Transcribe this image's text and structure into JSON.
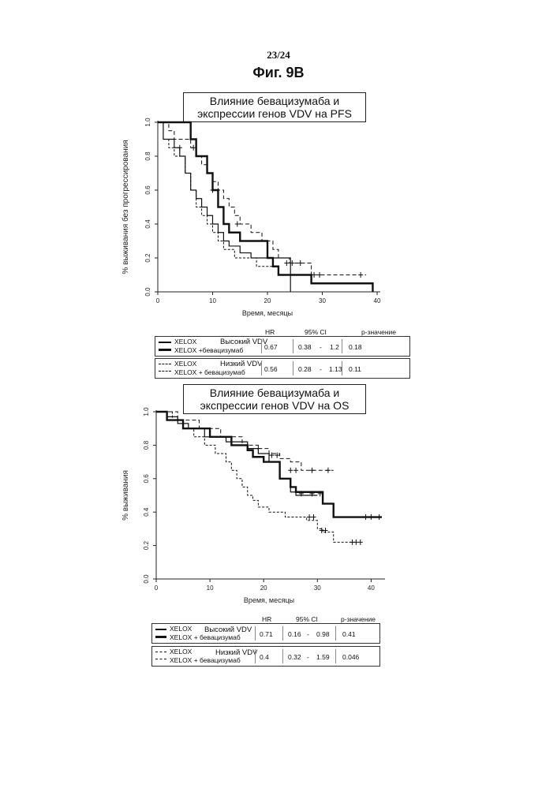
{
  "page": {
    "number": "23/24",
    "figure": "Фиг. 9B"
  },
  "chart_data": [
    {
      "type": "line",
      "title": "Влияние бевацизумаба и экспрессии генов VDV на PFS",
      "xlabel": "Время, месяцы",
      "ylabel": "% выживания без прогрессирования",
      "xlim": [
        0,
        40
      ],
      "ylim": [
        0,
        1.0
      ],
      "xticks": [
        "0",
        "10",
        "20",
        "30",
        "40"
      ],
      "yticks": [
        "0.0",
        "0.2",
        "0.4",
        "0.6",
        "0.8",
        "1.0"
      ],
      "series": [
        {
          "name": "XELOX (Высокий VDV)",
          "style": "thin-solid",
          "x": [
            0,
            1,
            3,
            4,
            5,
            6,
            7,
            8,
            9,
            10,
            11,
            12,
            13,
            15,
            17,
            20,
            24,
            24.2
          ],
          "y": [
            1.0,
            0.9,
            0.85,
            0.8,
            0.7,
            0.6,
            0.55,
            0.5,
            0.45,
            0.4,
            0.35,
            0.3,
            0.27,
            0.23,
            0.2,
            0.2,
            0.2,
            0.0
          ]
        },
        {
          "name": "XELOX + бевацизумаб (Высокий VDV)",
          "style": "thick-solid",
          "x": [
            0,
            5,
            6,
            7,
            8,
            9,
            10,
            11,
            12,
            13,
            15,
            19,
            20,
            21,
            22,
            28,
            39,
            39.2
          ],
          "y": [
            1.0,
            1.0,
            0.9,
            0.8,
            0.8,
            0.7,
            0.6,
            0.5,
            0.4,
            0.35,
            0.3,
            0.3,
            0.2,
            0.15,
            0.1,
            0.05,
            0.05,
            0.0
          ]
        },
        {
          "name": "XELOX (Низкий VDV)",
          "style": "thin-dashed",
          "x": [
            0,
            1,
            2,
            3,
            5,
            6,
            7,
            8,
            9,
            10,
            11,
            12,
            14,
            16,
            18,
            20,
            22
          ],
          "y": [
            1.0,
            0.9,
            0.85,
            0.8,
            0.7,
            0.6,
            0.5,
            0.45,
            0.4,
            0.35,
            0.3,
            0.25,
            0.2,
            0.2,
            0.15,
            0.15,
            0.15
          ]
        },
        {
          "name": "XELOX + бевацизумаб (Низкий VDV)",
          "style": "thick-dashed",
          "x": [
            0,
            2,
            3,
            6,
            7,
            8,
            9,
            10,
            11,
            12,
            13,
            14,
            15,
            17,
            19,
            21,
            22,
            24,
            26,
            28,
            38
          ],
          "y": [
            1.0,
            0.95,
            0.9,
            0.85,
            0.8,
            0.75,
            0.7,
            0.65,
            0.6,
            0.55,
            0.5,
            0.45,
            0.4,
            0.35,
            0.3,
            0.25,
            0.2,
            0.17,
            0.17,
            0.1,
            0.1
          ]
        }
      ],
      "censor_marks": [
        {
          "x": 4,
          "y": 0.85
        },
        {
          "x": 6.5,
          "y": 0.85
        },
        {
          "x": 10,
          "y": 0.6
        },
        {
          "x": 14.5,
          "y": 0.4
        },
        {
          "x": 23.5,
          "y": 0.17
        },
        {
          "x": 24.5,
          "y": 0.17
        },
        {
          "x": 26,
          "y": 0.17
        },
        {
          "x": 28.5,
          "y": 0.1
        },
        {
          "x": 29.5,
          "y": 0.1
        },
        {
          "x": 37,
          "y": 0.1
        }
      ],
      "table": {
        "headers": {
          "hr": "HR",
          "ci": "95% CI",
          "p": "р-значение"
        },
        "groups": [
          {
            "label": "Высокий VDV",
            "arm1": "XELOX",
            "arm2": "XELOX +бевацизумаб",
            "hr": "0.67",
            "ci_low": "0.38",
            "ci_high": "1.2",
            "p": "0.18"
          },
          {
            "label": "Низкий VDV",
            "arm1": "XELOX",
            "arm2": "XELOX + бевацизумаб",
            "hr": "0.56",
            "ci_low": "0.28",
            "ci_high": "1.13",
            "p": "0.11"
          }
        ]
      }
    },
    {
      "type": "line",
      "title": "Влияние бевацизумаба и экспрессии генов VDV на OS",
      "xlabel": "Время, месяцы",
      "ylabel": "% выживания",
      "xlim": [
        0,
        42
      ],
      "ylim": [
        0,
        1.0
      ],
      "xticks": [
        "0",
        "10",
        "20",
        "30",
        "40"
      ],
      "yticks": [
        "0.0",
        "0.2",
        "0.4",
        "0.6",
        "0.8",
        "1.0"
      ],
      "series": [
        {
          "name": "XELOX (Высокий VDV)",
          "style": "thin-solid",
          "x": [
            0,
            2,
            4,
            6,
            9,
            13,
            17,
            19,
            21,
            23,
            25,
            26,
            28,
            30
          ],
          "y": [
            1.0,
            0.97,
            0.93,
            0.9,
            0.85,
            0.82,
            0.78,
            0.75,
            0.7,
            0.6,
            0.52,
            0.5,
            0.5,
            0.5
          ]
        },
        {
          "name": "XELOX + бевацизумаб (Высокий VDV)",
          "style": "thick-solid",
          "x": [
            0,
            2,
            5,
            8,
            10,
            14,
            17,
            18,
            20,
            22,
            23,
            25,
            26,
            31,
            33,
            42
          ],
          "y": [
            1.0,
            0.95,
            0.9,
            0.9,
            0.85,
            0.8,
            0.77,
            0.73,
            0.7,
            0.7,
            0.6,
            0.55,
            0.52,
            0.45,
            0.37,
            0.37
          ]
        },
        {
          "name": "XELOX (Низкий VDV)",
          "style": "thin-dashed",
          "x": [
            0,
            3,
            5,
            7,
            9,
            11,
            13,
            14,
            15,
            16,
            17,
            18,
            19,
            21,
            24,
            28,
            30,
            31,
            33,
            35,
            37
          ],
          "y": [
            1.0,
            0.95,
            0.9,
            0.85,
            0.8,
            0.75,
            0.7,
            0.65,
            0.6,
            0.55,
            0.5,
            0.47,
            0.43,
            0.4,
            0.37,
            0.35,
            0.3,
            0.28,
            0.22,
            0.22,
            0.22
          ]
        },
        {
          "name": "XELOX + бевацизумаб (Низкий VDV)",
          "style": "thick-dashed",
          "x": [
            0,
            4,
            8,
            12,
            16,
            19,
            21,
            23,
            25,
            27,
            33
          ],
          "y": [
            1.0,
            0.95,
            0.9,
            0.85,
            0.8,
            0.78,
            0.75,
            0.72,
            0.7,
            0.65,
            0.65
          ]
        }
      ],
      "censor_marks": [
        {
          "x": 19,
          "y": 0.78
        },
        {
          "x": 21.5,
          "y": 0.74
        },
        {
          "x": 22.5,
          "y": 0.74
        },
        {
          "x": 25,
          "y": 0.65
        },
        {
          "x": 26,
          "y": 0.65
        },
        {
          "x": 29,
          "y": 0.65
        },
        {
          "x": 32,
          "y": 0.65
        },
        {
          "x": 27,
          "y": 0.51
        },
        {
          "x": 29,
          "y": 0.51
        },
        {
          "x": 30.5,
          "y": 0.51
        },
        {
          "x": 28.5,
          "y": 0.37
        },
        {
          "x": 29.3,
          "y": 0.37
        },
        {
          "x": 30.8,
          "y": 0.29
        },
        {
          "x": 31.5,
          "y": 0.29
        },
        {
          "x": 36.5,
          "y": 0.22
        },
        {
          "x": 37.2,
          "y": 0.22
        },
        {
          "x": 38,
          "y": 0.22
        },
        {
          "x": 39,
          "y": 0.37
        },
        {
          "x": 40,
          "y": 0.37
        },
        {
          "x": 41.5,
          "y": 0.37
        }
      ],
      "table": {
        "headers": {
          "hr": "HR",
          "ci": "95% CI",
          "p": "р-значение"
        },
        "groups": [
          {
            "label": "Высокий VDV",
            "arm1": "XELOX",
            "arm2": "XELOX + бевацизумаб",
            "hr": "0.71",
            "ci_low": "0.16",
            "ci_high": "0.98",
            "p": "0.41"
          },
          {
            "label": "Низкий VDV",
            "arm1": "XELOX",
            "arm2": "XELOX + бевацизумаб",
            "hr": "0.4",
            "ci_low": "0.32",
            "ci_high": "1.59",
            "p": "0.046"
          }
        ]
      }
    }
  ]
}
